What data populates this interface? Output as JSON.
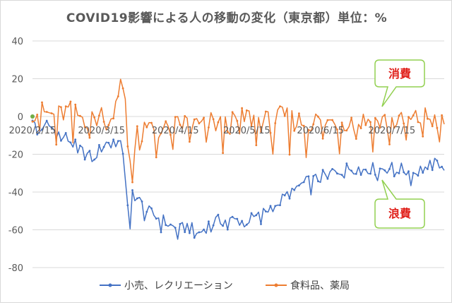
{
  "chart_data": {
    "type": "line",
    "title": "COVID19影響による人の移動の変化（東京都）単位：%",
    "ylim": [
      -80,
      40
    ],
    "yticks": [
      40,
      20,
      0,
      -20,
      -40,
      -60,
      -80
    ],
    "xtick_labels": [
      "2020/2/15",
      "2020/3/15",
      "2020/4/15",
      "2020/5/15",
      "2020/6/15",
      "2020/7/15"
    ],
    "xtick_positions": [
      0,
      29,
      60,
      90,
      121,
      151
    ],
    "n_days": 174,
    "grid": true,
    "legend_position": "bottom",
    "series": [
      {
        "name": "小売、レクリエーション",
        "color": "#4472c4",
        "keypoints": [
          [
            0,
            0
          ],
          [
            2,
            -10
          ],
          [
            5,
            -3
          ],
          [
            10,
            -8
          ],
          [
            15,
            -12
          ],
          [
            20,
            -18
          ],
          [
            25,
            -22
          ],
          [
            28,
            -18
          ],
          [
            30,
            -15
          ],
          [
            33,
            -12
          ],
          [
            36,
            -14
          ],
          [
            38,
            -18
          ],
          [
            40,
            -45
          ],
          [
            41,
            -62
          ],
          [
            42,
            -40
          ],
          [
            45,
            -45
          ],
          [
            48,
            -50
          ],
          [
            52,
            -53
          ],
          [
            55,
            -55
          ],
          [
            58,
            -58
          ],
          [
            62,
            -60
          ],
          [
            65,
            -58
          ],
          [
            70,
            -62
          ],
          [
            75,
            -56
          ],
          [
            80,
            -55
          ],
          [
            85,
            -55
          ],
          [
            90,
            -55
          ],
          [
            95,
            -53
          ],
          [
            100,
            -48
          ],
          [
            105,
            -44
          ],
          [
            110,
            -38
          ],
          [
            115,
            -35
          ],
          [
            120,
            -33
          ],
          [
            125,
            -30
          ],
          [
            130,
            -28
          ],
          [
            135,
            -27
          ],
          [
            140,
            -27
          ],
          [
            145,
            -28
          ],
          [
            150,
            -27
          ],
          [
            155,
            -28
          ],
          [
            160,
            -30
          ],
          [
            165,
            -27
          ],
          [
            170,
            -25
          ],
          [
            173,
            -24
          ]
        ]
      },
      {
        "name": "食料品、薬局",
        "color": "#ed7d31",
        "keypoints": [
          [
            0,
            3
          ],
          [
            5,
            2
          ],
          [
            10,
            0
          ],
          [
            15,
            3
          ],
          [
            20,
            0
          ],
          [
            25,
            -2
          ],
          [
            28,
            0
          ],
          [
            30,
            3
          ],
          [
            33,
            0
          ],
          [
            36,
            8
          ],
          [
            38,
            24
          ],
          [
            39,
            10
          ],
          [
            40,
            -15
          ],
          [
            42,
            -30
          ],
          [
            44,
            -5
          ],
          [
            46,
            -10
          ],
          [
            50,
            -5
          ],
          [
            55,
            -8
          ],
          [
            60,
            -5
          ],
          [
            65,
            -3
          ],
          [
            70,
            -5
          ],
          [
            75,
            -3
          ],
          [
            80,
            -5
          ],
          [
            85,
            -3
          ],
          [
            90,
            0
          ],
          [
            95,
            -2
          ],
          [
            100,
            -3
          ],
          [
            105,
            0
          ],
          [
            110,
            -2
          ],
          [
            115,
            -3
          ],
          [
            120,
            -2
          ],
          [
            125,
            -3
          ],
          [
            130,
            -2
          ],
          [
            135,
            -3
          ],
          [
            140,
            -2
          ],
          [
            145,
            -3
          ],
          [
            150,
            -2
          ],
          [
            155,
            -3
          ],
          [
            160,
            -2
          ],
          [
            165,
            0
          ],
          [
            170,
            -2
          ],
          [
            173,
            -3
          ]
        ]
      }
    ],
    "annotations": [
      {
        "text": "消費",
        "target": "食料品、薬局"
      },
      {
        "text": "浪費",
        "target": "小売、レクリエーション"
      }
    ]
  },
  "colors": {
    "grid": "#d9d9d9",
    "callout_border": "#92d050",
    "callout_text": "#e0201a"
  }
}
